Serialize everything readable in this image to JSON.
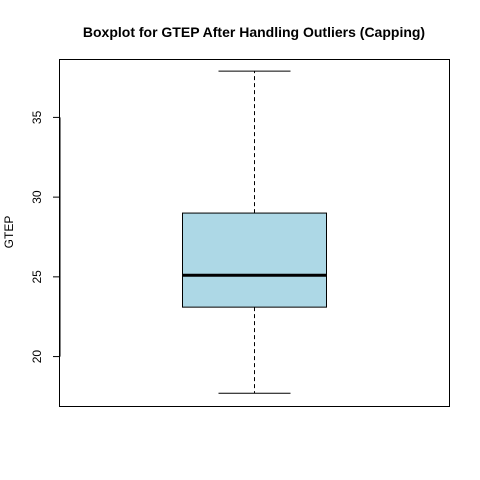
{
  "chart_data": {
    "type": "boxplot",
    "title": "Boxplot for GTEP After Handling Outliers (Capping)",
    "xlabel": "",
    "ylabel": "GTEP",
    "ylim": [
      16.9,
      38.6
    ],
    "yticks": [
      20,
      25,
      30,
      35
    ],
    "box": {
      "min": 17.7,
      "q1": 23.1,
      "median": 25.1,
      "q3": 29.0,
      "max": 37.9
    },
    "box_color": "#ADD8E6",
    "grid": false
  }
}
